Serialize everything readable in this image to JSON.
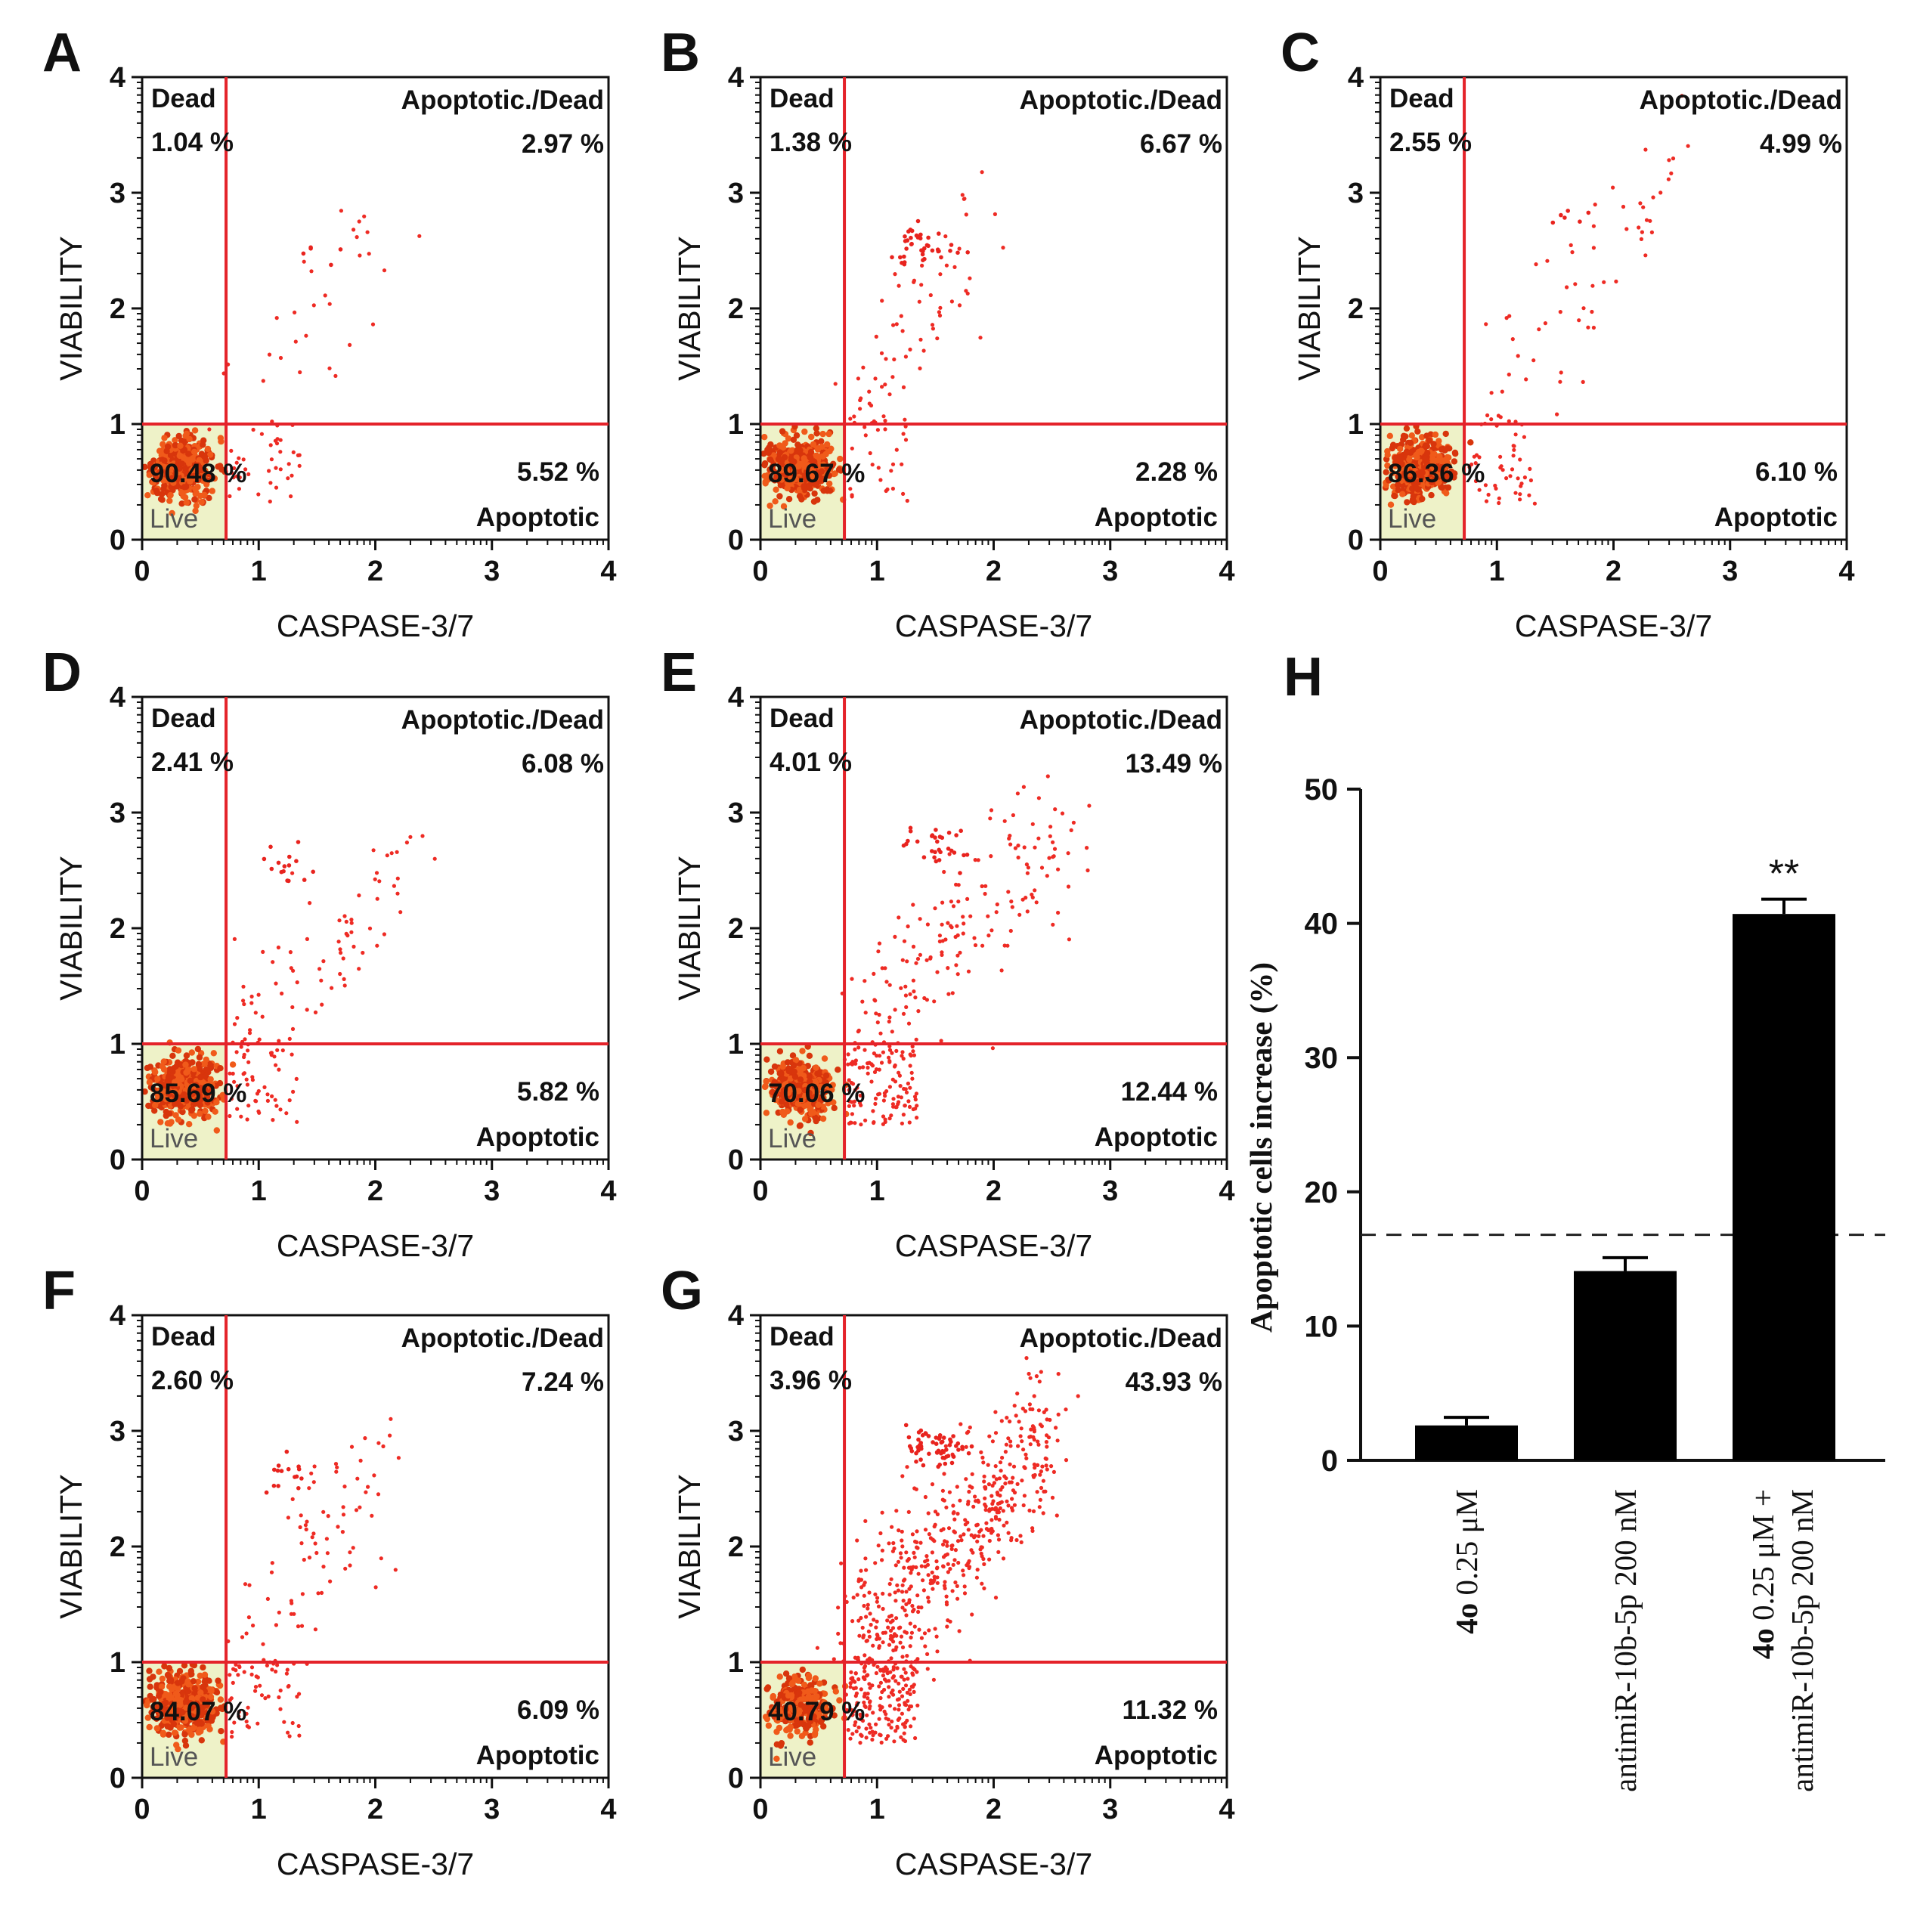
{
  "chart_data": [
    {
      "panel": "A",
      "type": "scatter",
      "xlabel": "CASPASE-3/7",
      "ylabel": "VIABILITY",
      "xlim": [
        0,
        4
      ],
      "ylim": [
        0,
        4
      ],
      "xticks": [
        "0",
        "1",
        "2",
        "3",
        "4"
      ],
      "yticks": [
        "0",
        "1",
        "2",
        "3",
        "4"
      ],
      "gates": {
        "x": 0.72,
        "y": 1.0
      },
      "quadrants": {
        "dead_label": "Dead",
        "dead": "1.04 %",
        "apodead_label": "Apoptotic./Dead",
        "apodead": "2.97 %",
        "live": "90.48 %",
        "live_label": "Live",
        "apo": "5.52 %",
        "apo_label": "Apoptotic"
      },
      "density": {
        "seed": 11,
        "core": 420,
        "tail": 40,
        "upper": 30,
        "cluster": [
          1.45,
          2.5
        ],
        "cluster_n": 5,
        "spread_x": 0.5,
        "spread_y": 0.9,
        "max_x": 2.1
      }
    },
    {
      "panel": "B",
      "type": "scatter",
      "xlabel": "CASPASE-3/7",
      "ylabel": "VIABILITY",
      "xlim": [
        0,
        4
      ],
      "ylim": [
        0,
        4
      ],
      "xticks": [
        "0",
        "1",
        "2",
        "3",
        "4"
      ],
      "yticks": [
        "0",
        "1",
        "2",
        "3",
        "4"
      ],
      "gates": {
        "x": 0.72,
        "y": 1.0
      },
      "quadrants": {
        "dead_label": "Dead",
        "dead": "1.38 %",
        "apodead_label": "Apoptotic./Dead",
        "apodead": "6.67 %",
        "live": "89.67 %",
        "live_label": "Live",
        "apo": "2.28 %",
        "apo_label": "Apoptotic"
      },
      "density": {
        "seed": 23,
        "core": 420,
        "tail": 25,
        "upper": 70,
        "cluster": [
          1.4,
          2.55
        ],
        "cluster_n": 40,
        "spread_x": 0.4,
        "spread_y": 0.8,
        "max_x": 1.9
      }
    },
    {
      "panel": "C",
      "type": "scatter",
      "xlabel": "CASPASE-3/7",
      "ylabel": "VIABILITY",
      "xlim": [
        0,
        4
      ],
      "ylim": [
        0,
        4
      ],
      "xticks": [
        "0",
        "1",
        "2",
        "3",
        "4"
      ],
      "yticks": [
        "0",
        "1",
        "2",
        "3",
        "4"
      ],
      "gates": {
        "x": 0.72,
        "y": 1.0
      },
      "quadrants": {
        "dead_label": "Dead",
        "dead": "2.55 %",
        "apodead_label": "Apoptotic./Dead",
        "apodead": "4.99 %",
        "live": "86.36 %",
        "live_label": "Live",
        "apo": "6.10 %",
        "apo_label": "Apoptotic"
      },
      "density": {
        "seed": 37,
        "core": 420,
        "tail": 45,
        "upper": 60,
        "cluster": [
          1.55,
          2.8
        ],
        "cluster_n": 6,
        "spread_x": 0.6,
        "spread_y": 0.9,
        "max_x": 2.5
      }
    },
    {
      "panel": "D",
      "type": "scatter",
      "xlabel": "CASPASE-3/7",
      "ylabel": "VIABILITY",
      "xlim": [
        0,
        4
      ],
      "ylim": [
        0,
        4
      ],
      "xticks": [
        "0",
        "1",
        "2",
        "3",
        "4"
      ],
      "yticks": [
        "0",
        "1",
        "2",
        "3",
        "4"
      ],
      "gates": {
        "x": 0.72,
        "y": 1.0
      },
      "quadrants": {
        "dead_label": "Dead",
        "dead": "2.41 %",
        "apodead_label": "Apoptotic./Dead",
        "apodead": "6.08 %",
        "live": "85.69 %",
        "live_label": "Live",
        "apo": "5.82 %",
        "apo_label": "Apoptotic"
      },
      "density": {
        "seed": 41,
        "core": 430,
        "tail": 50,
        "upper": 80,
        "cluster": [
          1.2,
          2.55
        ],
        "cluster_n": 15,
        "spread_x": 0.5,
        "spread_y": 0.9,
        "max_x": 2.4
      }
    },
    {
      "panel": "E",
      "type": "scatter",
      "xlabel": "CASPASE-3/7",
      "ylabel": "VIABILITY",
      "xlim": [
        0,
        4
      ],
      "ylim": [
        0,
        4
      ],
      "xticks": [
        "0",
        "1",
        "2",
        "3",
        "4"
      ],
      "yticks": [
        "0",
        "1",
        "2",
        "3",
        "4"
      ],
      "gates": {
        "x": 0.72,
        "y": 1.0
      },
      "quadrants": {
        "dead_label": "Dead",
        "dead": "4.01 %",
        "apodead_label": "Apoptotic./Dead",
        "apodead": "13.49 %",
        "live": "70.06 %",
        "live_label": "Live",
        "apo": "12.44 %",
        "apo_label": "Apoptotic"
      },
      "density": {
        "seed": 53,
        "core": 380,
        "tail": 110,
        "upper": 180,
        "cluster": [
          1.5,
          2.7
        ],
        "cluster_n": 30,
        "spread_x": 0.6,
        "spread_y": 1.0,
        "max_x": 2.7
      }
    },
    {
      "panel": "F",
      "type": "scatter",
      "xlabel": "CASPASE-3/7",
      "ylabel": "VIABILITY",
      "xlim": [
        0,
        4
      ],
      "ylim": [
        0,
        4
      ],
      "xticks": [
        "0",
        "1",
        "2",
        "3",
        "4"
      ],
      "yticks": [
        "0",
        "1",
        "2",
        "3",
        "4"
      ],
      "gates": {
        "x": 0.72,
        "y": 1.0
      },
      "quadrants": {
        "dead_label": "Dead",
        "dead": "2.60 %",
        "apodead_label": "Apoptotic./Dead",
        "apodead": "7.24 %",
        "live": "84.07 %",
        "live_label": "Live",
        "apo": "6.09 %",
        "apo_label": "Apoptotic"
      },
      "density": {
        "seed": 67,
        "core": 430,
        "tail": 50,
        "upper": 85,
        "cluster": [
          1.3,
          2.6
        ],
        "cluster_n": 15,
        "spread_x": 0.5,
        "spread_y": 0.9,
        "max_x": 2.1
      }
    },
    {
      "panel": "G",
      "type": "scatter",
      "xlabel": "CASPASE-3/7",
      "ylabel": "VIABILITY",
      "xlim": [
        0,
        4
      ],
      "ylim": [
        0,
        4
      ],
      "xticks": [
        "0",
        "1",
        "2",
        "3",
        "4"
      ],
      "yticks": [
        "0",
        "1",
        "2",
        "3",
        "4"
      ],
      "gates": {
        "x": 0.72,
        "y": 1.0
      },
      "quadrants": {
        "dead_label": "Dead",
        "dead": "3.96 %",
        "apodead_label": "Apoptotic./Dead",
        "apodead": "43.93 %",
        "live": "40.79 %",
        "live_label": "Live",
        "apo": "11.32 %",
        "apo_label": "Apoptotic"
      },
      "density": {
        "seed": 79,
        "core": 280,
        "tail": 160,
        "upper": 560,
        "cluster": [
          1.5,
          2.85
        ],
        "cluster_n": 60,
        "spread_x": 0.7,
        "spread_y": 1.1,
        "max_x": 2.5
      }
    },
    {
      "panel": "H",
      "type": "bar",
      "ylabel": "Apoptotic cells increase (%)",
      "ylim": [
        0,
        50
      ],
      "yticks": [
        "0",
        "10",
        "20",
        "30",
        "40",
        "50"
      ],
      "categories": [
        {
          "bold": "4o",
          "rest": " 0.25 μM",
          "line2": ""
        },
        {
          "bold": "",
          "rest": "antimiR-10b-5p 200 nM",
          "line2": ""
        },
        {
          "bold": "4o",
          "rest": " 0.25 μM +",
          "line2": "antimiR-10b-5p 200 nM"
        }
      ],
      "values": [
        2.6,
        14.1,
        40.7
      ],
      "errors": [
        0.6,
        1.0,
        1.1
      ],
      "significance": [
        "",
        "",
        "**"
      ],
      "reference_line": 16.8
    }
  ]
}
